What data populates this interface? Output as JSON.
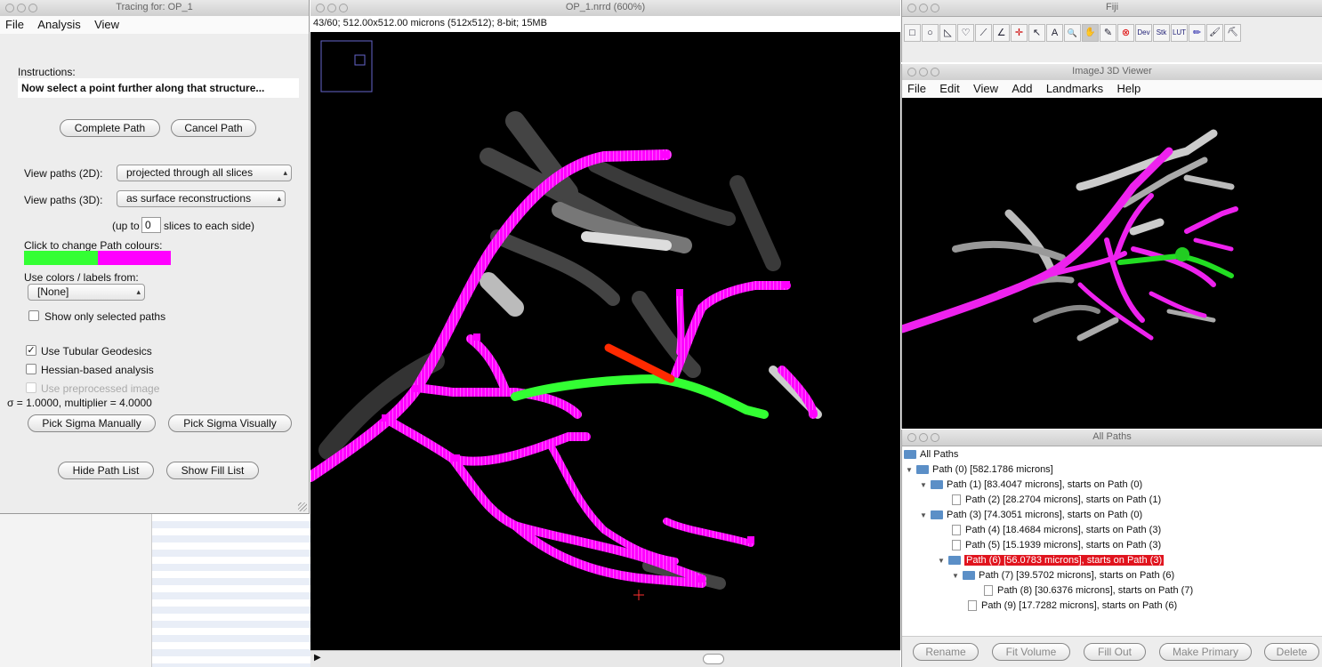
{
  "tracing": {
    "title": "Tracing for: OP_1",
    "menu": [
      "File",
      "Analysis",
      "View"
    ],
    "instructions_label": "Instructions:",
    "instructions_text": "Now select a point further along that structure...",
    "complete_path": "Complete Path",
    "cancel_path": "Cancel Path",
    "view_2d_label": "View paths (2D):",
    "view_2d_value": "projected through all slices",
    "view_3d_label": "View paths (3D):",
    "view_3d_value": "as surface reconstructions",
    "upto_prefix": "(up to",
    "upto_value": "0",
    "upto_suffix": "slices to each side)",
    "colours_label": "Click to change Path colours:",
    "colour_a": "#33ff33",
    "colour_b": "#ff00ff",
    "use_colors_label": "Use colors / labels from:",
    "use_colors_value": "[None]",
    "show_selected": "Show only selected paths",
    "use_tubular": "Use Tubular Geodesics",
    "hessian": "Hessian-based analysis",
    "preprocessed": "Use preprocessed image",
    "sigma_text": "σ = 1.0000, multiplier = 4.0000",
    "pick_manual": "Pick Sigma Manually",
    "pick_visual": "Pick Sigma Visually",
    "hide_path_list": "Hide Path List",
    "show_fill_list": "Show Fill List"
  },
  "image_window": {
    "title": "OP_1.nrrd (600%)",
    "info": "43/60; 512.00x512.00 microns (512x512); 8-bit; 15MB"
  },
  "fiji": {
    "title": "Fiji",
    "tools": [
      "rect",
      "oval",
      "poly",
      "freehand",
      "line",
      "angle",
      "point",
      "wand",
      "text",
      "magnifier",
      "hand",
      "dropper",
      "cancel",
      "Dev",
      "Stk",
      "LUT",
      "pencil",
      "brush",
      "flood"
    ],
    "tool_labels": [
      "□",
      "○",
      "◺",
      "♡",
      "⟋",
      "∠",
      "✛",
      "↖",
      "A",
      "🔍",
      "✋",
      "✎",
      "⊗",
      "Dev",
      "Stk",
      "LUT",
      "✏",
      "🖌",
      "⛏"
    ]
  },
  "viewer3d": {
    "title": "ImageJ 3D Viewer",
    "menu": [
      "File",
      "Edit",
      "View",
      "Add",
      "Landmarks",
      "Help"
    ]
  },
  "all_paths": {
    "title": "All Paths",
    "root": "All Paths",
    "rows": [
      "Path (0) [582.1786 microns]",
      "Path (1) [83.4047 microns], starts on Path (0)",
      "Path (2) [28.2704 microns], starts on Path (1)",
      "Path (3) [74.3051 microns], starts on Path (0)",
      "Path (4) [18.4684 microns], starts on Path (3)",
      "Path (5) [15.1939 microns], starts on Path (3)",
      "Path (6) [56.0783 microns], starts on Path (3)",
      "Path (7) [39.5702 microns], starts on Path (6)",
      "Path (8) [30.6376 microns], starts on Path (7)",
      "Path (9) [17.7282 microns], starts on Path (6)"
    ],
    "buttons": [
      "Rename",
      "Fit Volume",
      "Fill Out",
      "Make Primary",
      "Delete"
    ]
  }
}
